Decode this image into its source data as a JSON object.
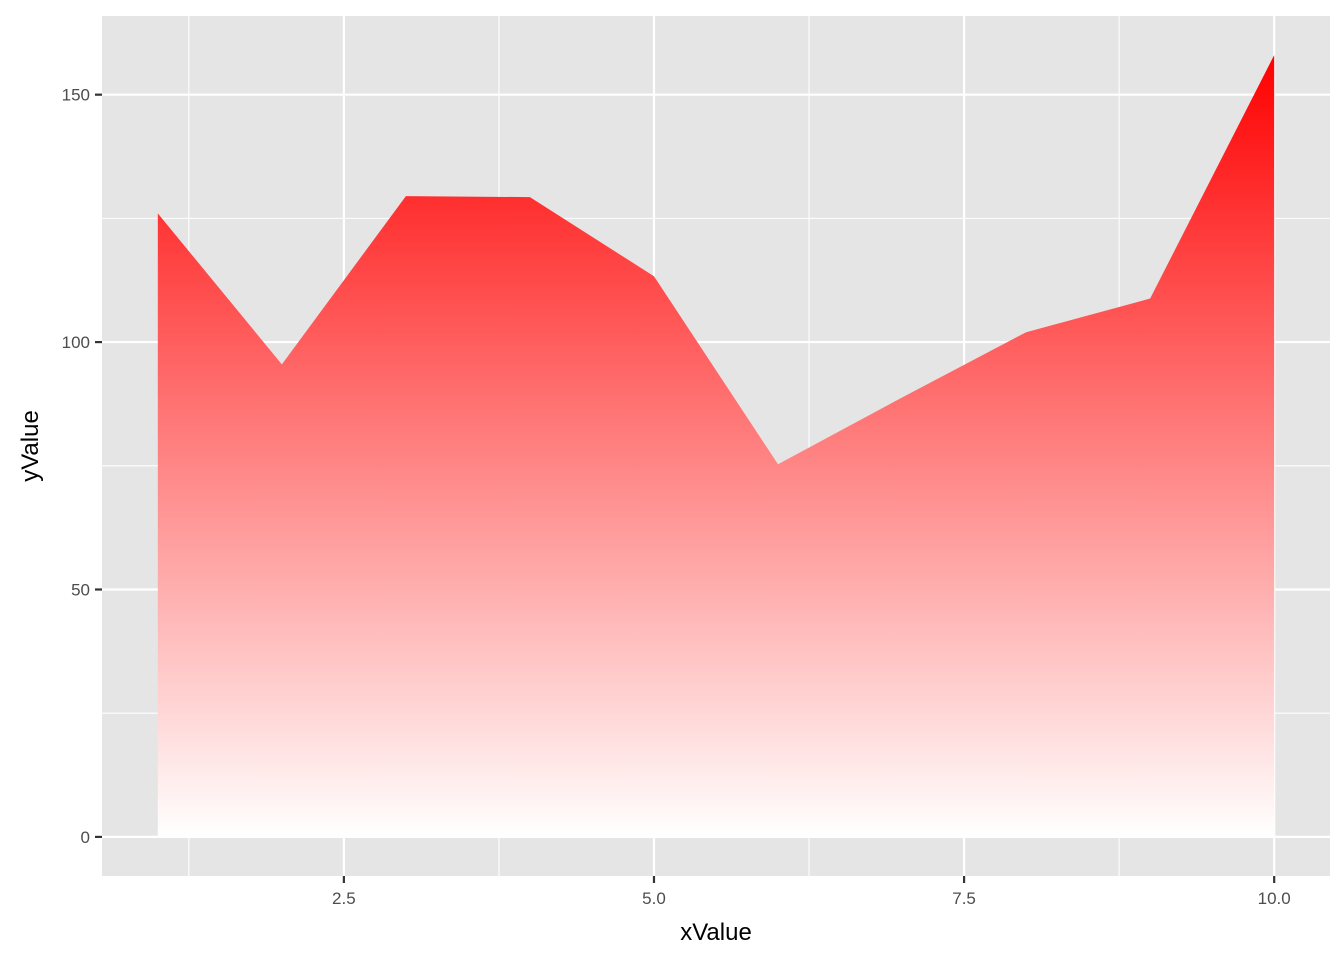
{
  "chart_data": {
    "type": "area",
    "title": "",
    "xlabel": "xValue",
    "ylabel": "yValue",
    "x": [
      1,
      2,
      3,
      4,
      5,
      6,
      7,
      8,
      9,
      10
    ],
    "series": [
      {
        "name": "yValue",
        "values": [
          126,
          95.5,
          129.5,
          129.3,
          113.3,
          75.3,
          88.8,
          102,
          108.8,
          158
        ]
      }
    ],
    "xlim": [
      0.55,
      10.45
    ],
    "ylim": [
      -7.9,
      165.9
    ],
    "x_ticks": [
      2.5,
      5.0,
      7.5,
      10.0
    ],
    "x_tick_labels": [
      "2.5",
      "5.0",
      "7.5",
      "10.0"
    ],
    "y_ticks": [
      0,
      50,
      100,
      150
    ],
    "y_tick_labels": [
      "0",
      "50",
      "100",
      "150"
    ],
    "grid": true,
    "legend": "none",
    "colors": {
      "panel_background": "#e5e5e5",
      "grid_line": "#ffffff",
      "fill_top": "#ff0000",
      "fill_bottom": "#ffffff",
      "tick_text": "#4d4d4d",
      "axis_title": "#000000"
    }
  }
}
